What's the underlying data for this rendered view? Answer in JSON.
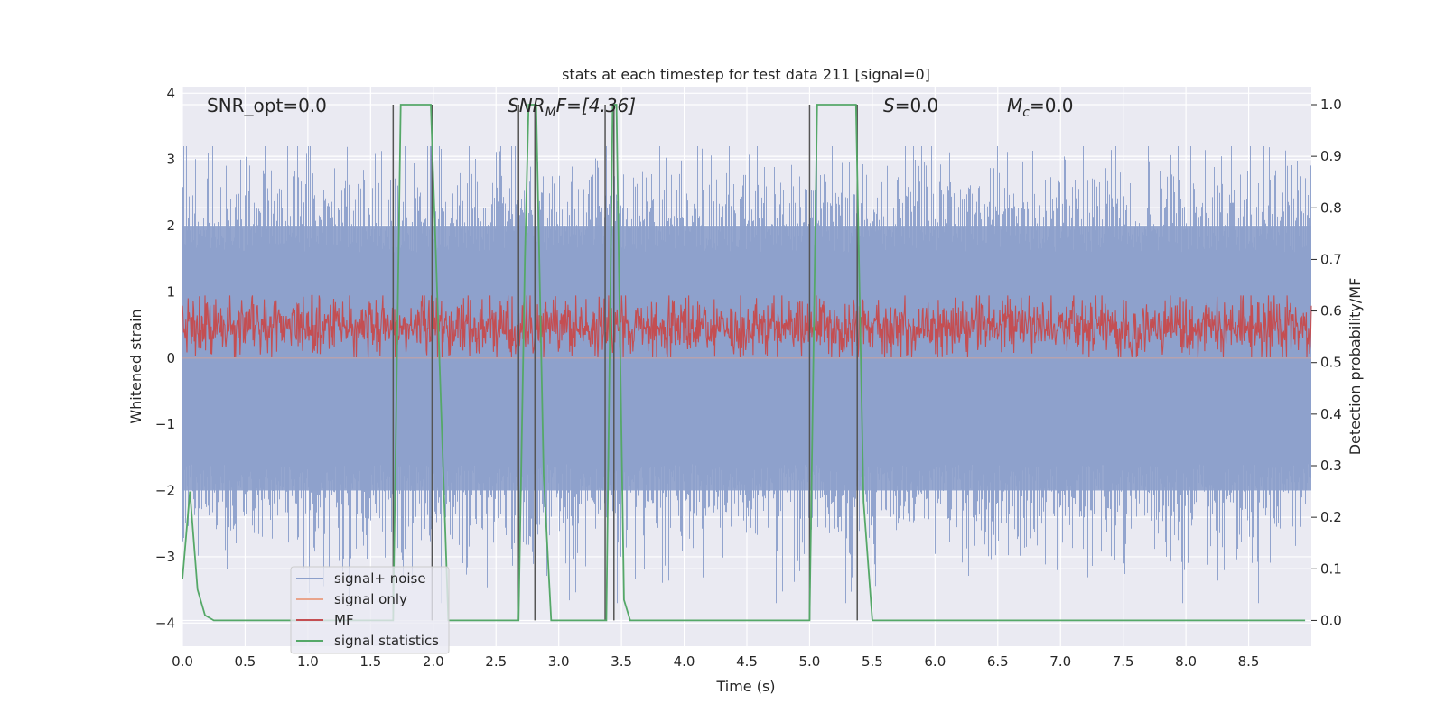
{
  "chart_data": {
    "type": "line",
    "title": "stats at each timestep for test data 211 [signal=0]",
    "xlabel": "Time (s)",
    "ylabel_left": "Whitened strain",
    "ylabel_right": "Detection probability/MF",
    "xlim": [
      0,
      9.0
    ],
    "ylim_left": [
      -4.35,
      4.1
    ],
    "ylim_right": [
      -0.05,
      1.035
    ],
    "x_ticks": [
      0.0,
      0.5,
      1.0,
      1.5,
      2.0,
      2.5,
      3.0,
      3.5,
      4.0,
      4.5,
      5.0,
      5.5,
      6.0,
      6.5,
      7.0,
      7.5,
      8.0,
      8.5
    ],
    "x_tick_labels": [
      "0.0",
      "0.5",
      "1.0",
      "1.5",
      "2.0",
      "2.5",
      "3.0",
      "3.5",
      "4.0",
      "4.5",
      "5.0",
      "5.5",
      "6.0",
      "6.5",
      "7.0",
      "7.5",
      "8.0",
      "8.5"
    ],
    "y_left_ticks": [
      4,
      3,
      2,
      1,
      0,
      -1,
      -2,
      -3,
      -4
    ],
    "y_left_tick_labels": [
      "4",
      "3",
      "2",
      "1",
      "0",
      "−1",
      "−2",
      "−3",
      "−4"
    ],
    "y_right_ticks": [
      1.0,
      0.9,
      0.8,
      0.7,
      0.6,
      0.5,
      0.4,
      0.3,
      0.2,
      0.1,
      0.0
    ],
    "y_right_tick_labels": [
      "1.0",
      "0.9",
      "0.8",
      "0.7",
      "0.6",
      "0.5",
      "0.4",
      "0.3",
      "0.2",
      "0.1",
      "0.0"
    ],
    "grid": true,
    "legend_position": "lower-left",
    "annotations": {
      "snr_opt": "SNR_opt=0.0",
      "snr_mf_main": "SNR",
      "snr_mf_sub": "M",
      "snr_mf_tail": "F=[4.36]",
      "s_main": "S",
      "s_tail": "=0.0",
      "mc_main": "M",
      "mc_sub": "c",
      "mc_tail": "=0.0"
    },
    "series": [
      {
        "name": "signal+ noise",
        "color": "#8da0cb",
        "axis": "left",
        "description_values": {
          "typical_range": [
            -2.0,
            2.0
          ],
          "extreme_min": -3.7,
          "extreme_max": 3.2
        }
      },
      {
        "name": "signal only",
        "color": "#e9a48b",
        "axis": "left",
        "values_note": "0 everywhere",
        "x": [
          0.0,
          9.0
        ],
        "y": [
          0.0,
          0.0
        ]
      },
      {
        "name": "MF",
        "color": "#c44e52",
        "axis": "right",
        "description_values": {
          "typical_range": [
            0.515,
            0.62
          ],
          "max": 0.65
        }
      },
      {
        "name": "signal statistics",
        "color": "#55a868",
        "axis": "right",
        "x": [
          0.0,
          0.06,
          0.12,
          0.18,
          0.25,
          0.3,
          1.68,
          1.74,
          1.98,
          2.12,
          2.68,
          2.73,
          2.76,
          2.82,
          2.88,
          2.94,
          3.38,
          3.43,
          3.46,
          3.52,
          3.57,
          5.0,
          5.06,
          5.37,
          5.43,
          5.5,
          8.95
        ],
        "y": [
          0.08,
          0.25,
          0.06,
          0.01,
          0.0,
          0.0,
          0.0,
          1.0,
          1.0,
          0.0,
          0.0,
          0.7,
          1.0,
          1.0,
          0.28,
          0.0,
          0.0,
          1.0,
          1.0,
          0.04,
          0.0,
          0.0,
          1.0,
          1.0,
          0.23,
          0.0,
          0.0
        ]
      }
    ],
    "vertical_markers_x": [
      1.68,
      1.99,
      2.68,
      2.81,
      3.37,
      3.44,
      5.0,
      5.38
    ]
  }
}
